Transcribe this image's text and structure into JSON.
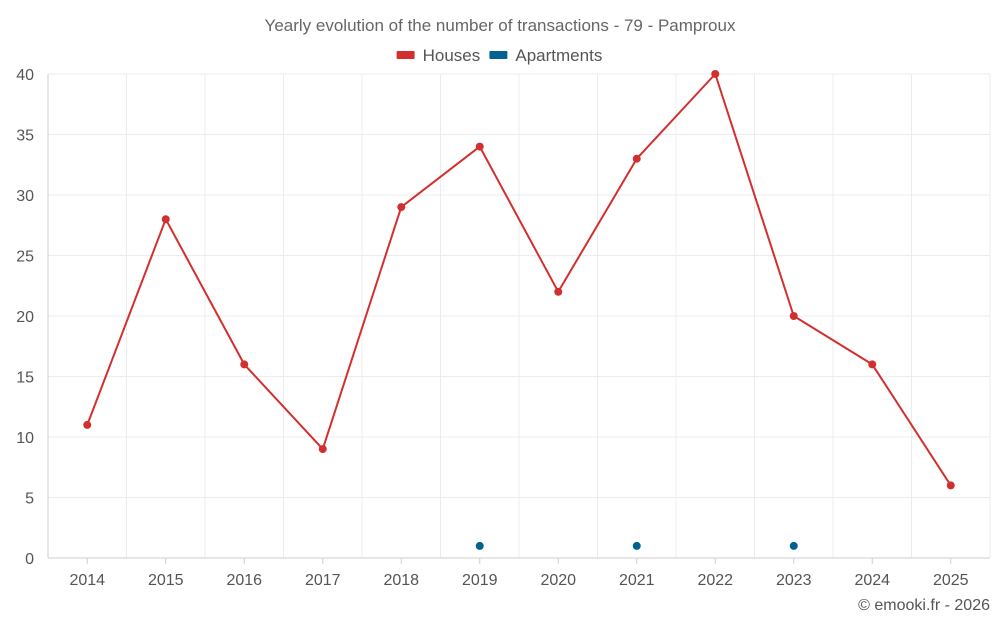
{
  "chart_data": {
    "type": "line",
    "title": "Yearly evolution of the number of transactions - 79 - Pamproux",
    "xlabel": "",
    "ylabel": "",
    "categories": [
      "2014",
      "2015",
      "2016",
      "2017",
      "2018",
      "2019",
      "2020",
      "2021",
      "2022",
      "2023",
      "2024",
      "2025"
    ],
    "ylim": [
      0,
      40
    ],
    "yticks": [
      0,
      5,
      10,
      15,
      20,
      25,
      30,
      35,
      40
    ],
    "grid": true,
    "legend_position": "top-center",
    "series": [
      {
        "name": "Houses",
        "color": "#d32f2f",
        "line": true,
        "values": [
          11,
          28,
          16,
          9,
          29,
          34,
          22,
          33,
          40,
          20,
          16,
          6
        ]
      },
      {
        "name": "Apartments",
        "color": "#01628f",
        "line": false,
        "values": [
          null,
          null,
          null,
          null,
          null,
          1,
          null,
          1,
          null,
          1,
          null,
          null
        ]
      }
    ]
  },
  "footer": {
    "credit": "© emooki.fr - 2026"
  }
}
